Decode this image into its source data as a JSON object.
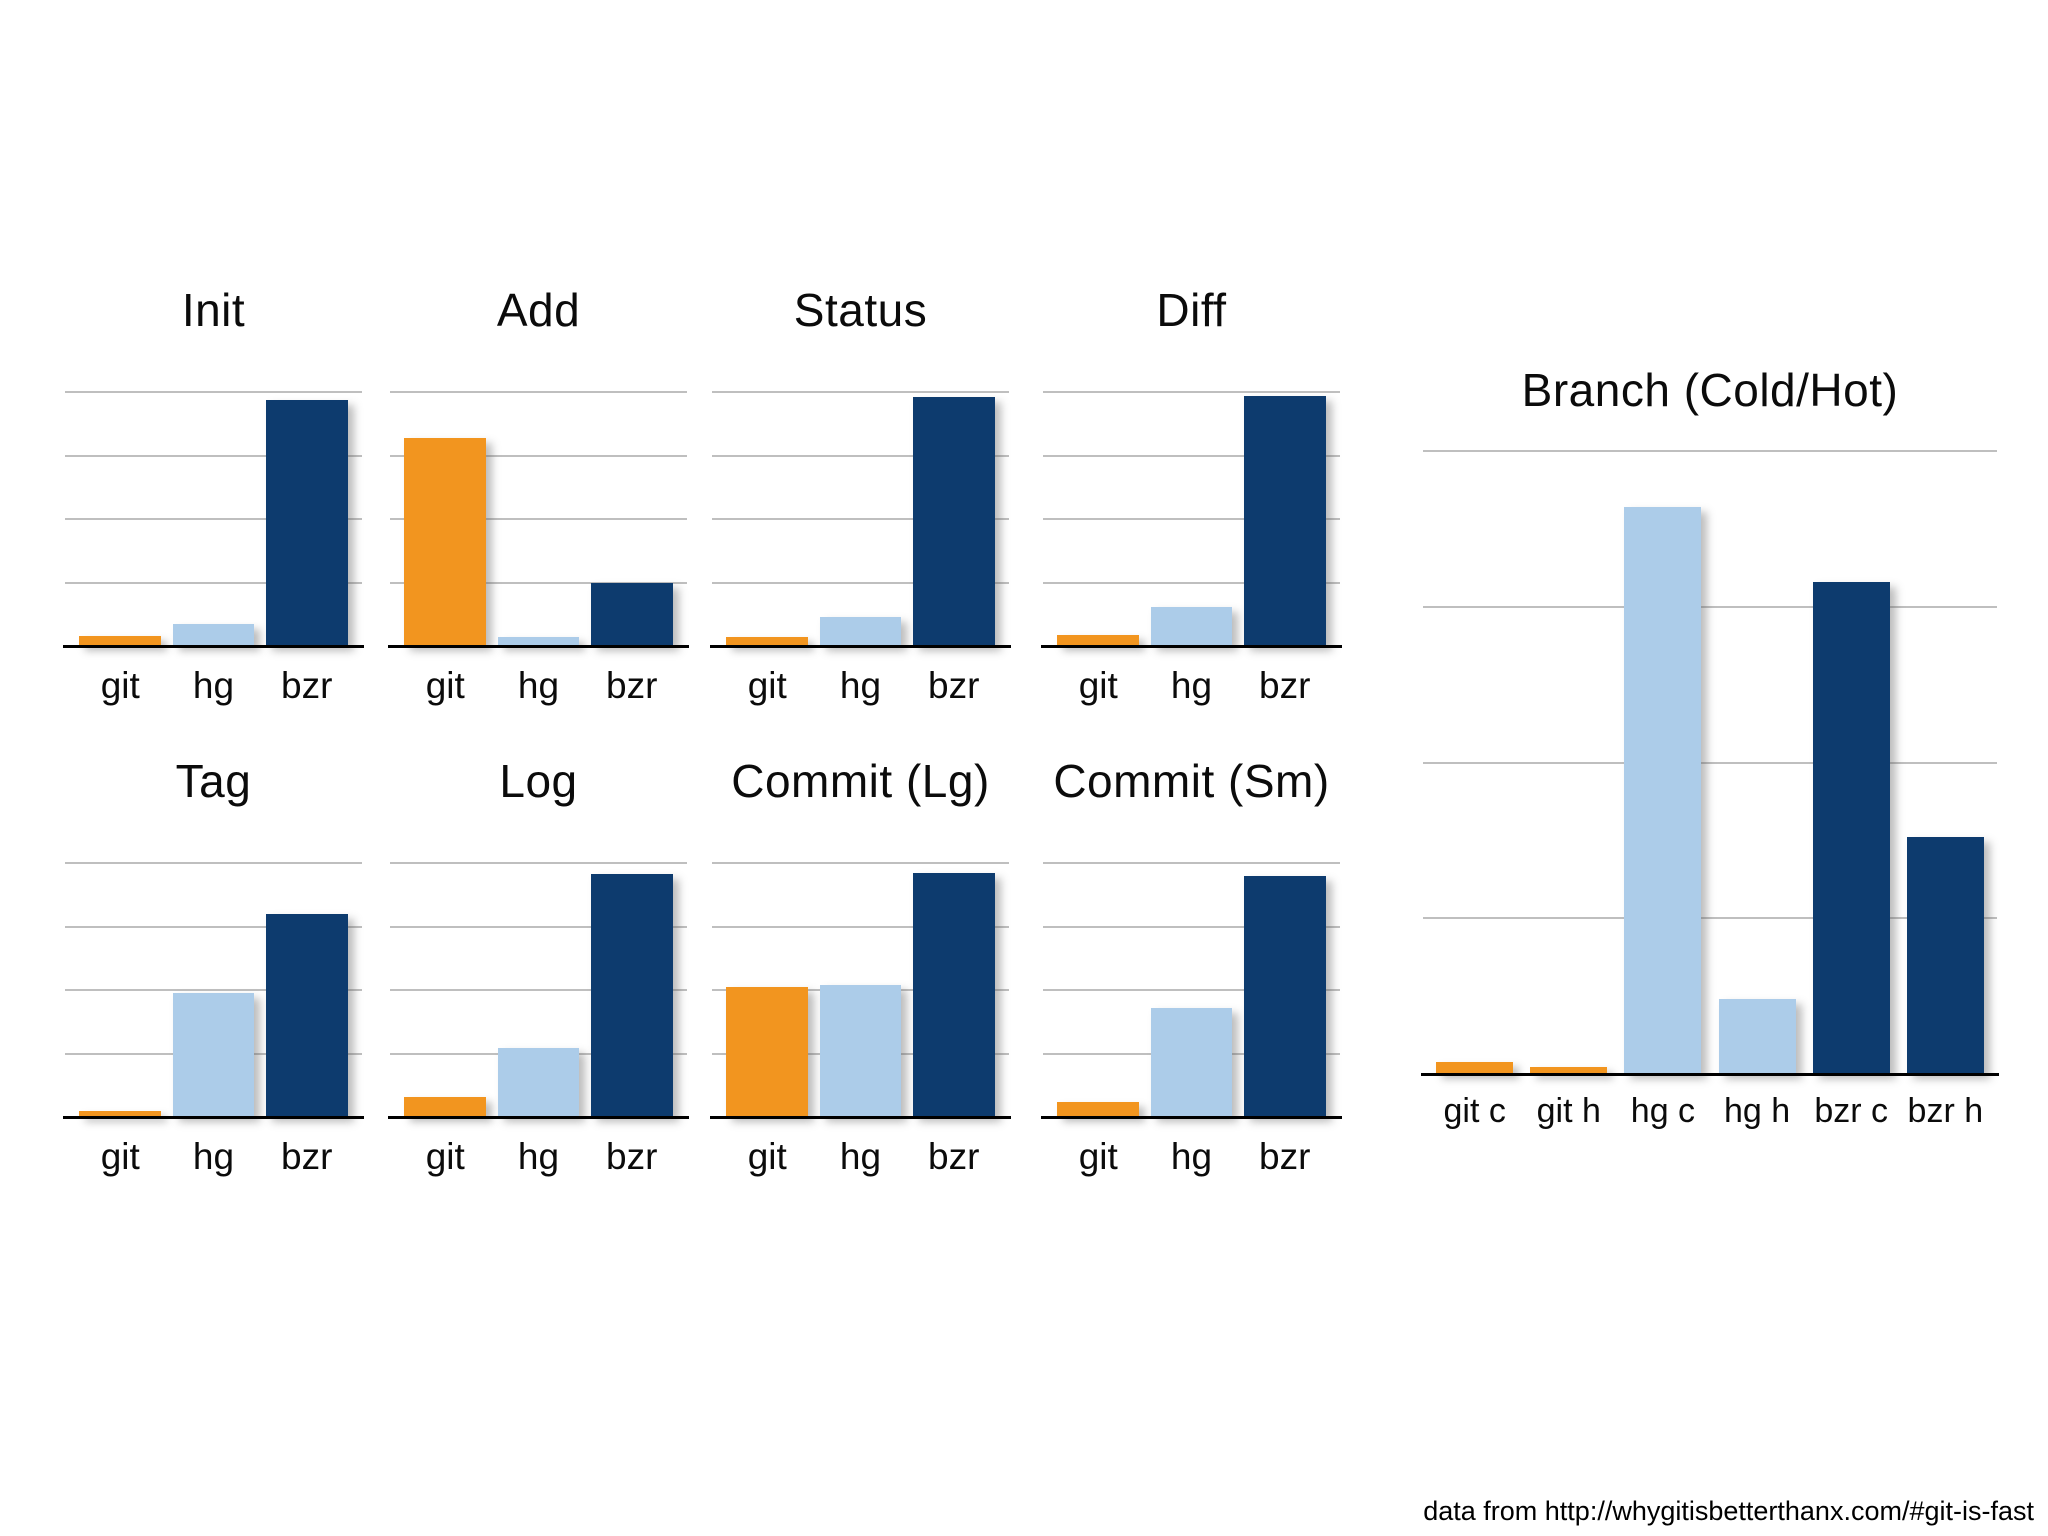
{
  "slide": {
    "footer": "data from http://whygitisbetterthanx.com/#git-is-fast"
  },
  "colors": {
    "git": "#F2951F",
    "hg": "#ACCCE9",
    "bzr": "#0D3B6E",
    "gridline": "#bfbfbf",
    "baseline": "#000000"
  },
  "chart_data": [
    {
      "type": "bar",
      "title": "Init",
      "categories": [
        "git",
        "hg",
        "bzr"
      ],
      "values": [
        0.04,
        0.085,
        0.97
      ],
      "series_colors": [
        "git",
        "hg",
        "bzr"
      ],
      "ylim": [
        0,
        1
      ],
      "gridlines": 4,
      "legend": "none"
    },
    {
      "type": "bar",
      "title": "Add",
      "categories": [
        "git",
        "hg",
        "bzr"
      ],
      "values": [
        0.82,
        0.035,
        0.25
      ],
      "series_colors": [
        "git",
        "hg",
        "bzr"
      ],
      "ylim": [
        0,
        1
      ],
      "gridlines": 4,
      "legend": "none"
    },
    {
      "type": "bar",
      "title": "Status",
      "categories": [
        "git",
        "hg",
        "bzr"
      ],
      "values": [
        0.035,
        0.115,
        0.98
      ],
      "series_colors": [
        "git",
        "hg",
        "bzr"
      ],
      "ylim": [
        0,
        1
      ],
      "gridlines": 4,
      "legend": "none"
    },
    {
      "type": "bar",
      "title": "Diff",
      "categories": [
        "git",
        "hg",
        "bzr"
      ],
      "values": [
        0.045,
        0.155,
        0.985
      ],
      "series_colors": [
        "git",
        "hg",
        "bzr"
      ],
      "ylim": [
        0,
        1
      ],
      "gridlines": 4,
      "legend": "none"
    },
    {
      "type": "bar",
      "title": "Tag",
      "categories": [
        "git",
        "hg",
        "bzr"
      ],
      "values": [
        0.025,
        0.49,
        0.8
      ],
      "series_colors": [
        "git",
        "hg",
        "bzr"
      ],
      "ylim": [
        0,
        1
      ],
      "gridlines": 4,
      "legend": "none"
    },
    {
      "type": "bar",
      "title": "Log",
      "categories": [
        "git",
        "hg",
        "bzr"
      ],
      "values": [
        0.08,
        0.27,
        0.955
      ],
      "series_colors": [
        "git",
        "hg",
        "bzr"
      ],
      "ylim": [
        0,
        1
      ],
      "gridlines": 4,
      "legend": "none"
    },
    {
      "type": "bar",
      "title": "Commit (Lg)",
      "categories": [
        "git",
        "hg",
        "bzr"
      ],
      "values": [
        0.51,
        0.52,
        0.96
      ],
      "series_colors": [
        "git",
        "hg",
        "bzr"
      ],
      "ylim": [
        0,
        1
      ],
      "gridlines": 4,
      "legend": "none"
    },
    {
      "type": "bar",
      "title": "Commit (Sm)",
      "categories": [
        "git",
        "hg",
        "bzr"
      ],
      "values": [
        0.06,
        0.43,
        0.95
      ],
      "series_colors": [
        "git",
        "hg",
        "bzr"
      ],
      "ylim": [
        0,
        1
      ],
      "gridlines": 4,
      "legend": "none"
    },
    {
      "type": "bar",
      "title": "Branch (Cold/Hot)",
      "categories": [
        "git c",
        "git h",
        "hg c",
        "hg h",
        "bzr c",
        "bzr h"
      ],
      "values": [
        0.02,
        0.012,
        0.91,
        0.12,
        0.79,
        0.38
      ],
      "series_colors": [
        "git",
        "git",
        "hg",
        "hg",
        "bzr",
        "bzr"
      ],
      "ylim": [
        0,
        1
      ],
      "gridlines": 4,
      "legend": "none"
    }
  ]
}
